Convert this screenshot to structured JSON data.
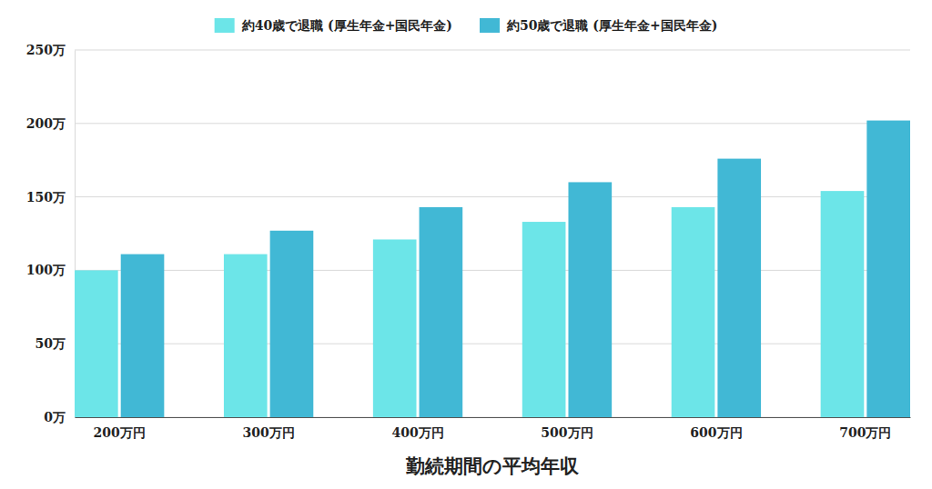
{
  "chart_data": {
    "type": "bar",
    "x_label": "勤続期間の平均年収",
    "categories": [
      "200万円",
      "300万円",
      "400万円",
      "500万円",
      "600万円",
      "700万円"
    ],
    "series": [
      {
        "name": "約40歳で退職 (厚生年金+国民年金)",
        "color": "#6ce5e8",
        "values": [
          100,
          111,
          121,
          133,
          143,
          154
        ]
      },
      {
        "name": "約50歳で退職 (厚生年金+国民年金)",
        "color": "#41b8d5",
        "values": [
          111,
          127,
          143,
          160,
          176,
          202
        ]
      }
    ],
    "ylim": [
      0,
      250
    ],
    "yticks": [
      {
        "value": 0,
        "label": "0万"
      },
      {
        "value": 50,
        "label": "50万"
      },
      {
        "value": 100,
        "label": "100万"
      },
      {
        "value": 150,
        "label": "150万"
      },
      {
        "value": 200,
        "label": "200万"
      },
      {
        "value": 250,
        "label": "250万"
      }
    ],
    "grid": true,
    "legend": "top"
  }
}
